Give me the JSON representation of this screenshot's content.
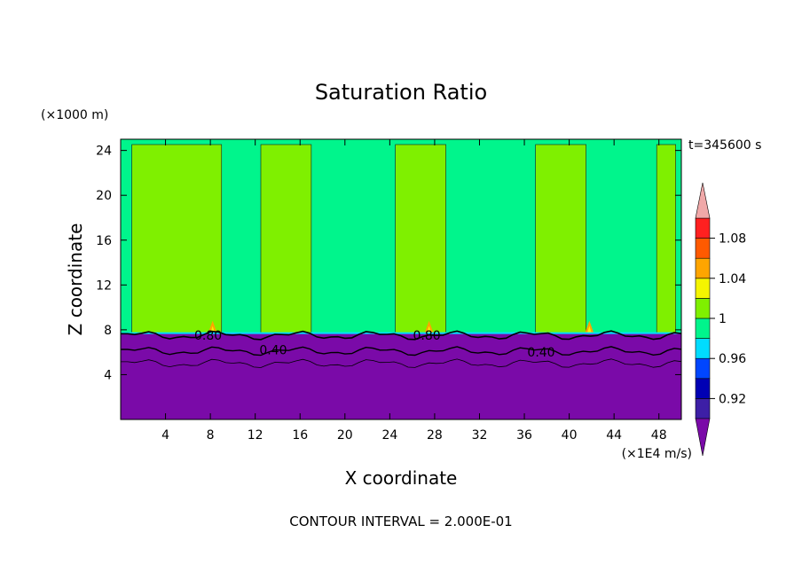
{
  "figure": {
    "title": "Saturation Ratio",
    "time_label": "t=345600 s",
    "footer": "CONTOUR INTERVAL = 2.000E-01"
  },
  "chart_data": {
    "type": "heatmap",
    "title": "Saturation Ratio",
    "xlabel": "X coordinate",
    "ylabel": "Z coordinate",
    "x_units": "(×1E4 m/s)",
    "y_units": "(×1000 m)",
    "xlim": [
      0,
      50
    ],
    "ylim": [
      0,
      25
    ],
    "x_ticks": [
      4,
      8,
      12,
      16,
      20,
      24,
      28,
      32,
      36,
      40,
      44,
      48
    ],
    "y_ticks": [
      4,
      8,
      12,
      16,
      20,
      24
    ],
    "colorbar": {
      "levels": [
        0.9,
        0.92,
        0.94,
        0.96,
        0.98,
        1.0,
        1.02,
        1.04,
        1.06,
        1.08,
        1.1
      ],
      "tick_labels": [
        "0.92",
        "0.96",
        "1",
        "1.04",
        "1.08"
      ],
      "tick_values": [
        0.92,
        0.96,
        1.0,
        1.04,
        1.08
      ],
      "colors": [
        "#3d1fa6",
        "#0000b4",
        "#0046ff",
        "#00dcff",
        "#00f58c",
        "#7ff000",
        "#f5f500",
        "#ffa500",
        "#ff5a00",
        "#ff2020"
      ],
      "under_color": "#7a0aa8",
      "over_color": "#f0a8a8"
    },
    "contour_labels": [
      {
        "x": 7.8,
        "z": 7.5,
        "value": "0.80"
      },
      {
        "x": 27.3,
        "z": 7.5,
        "value": "0.80"
      },
      {
        "x": 13.6,
        "z": 6.2,
        "value": "0.40"
      },
      {
        "x": 37.5,
        "z": 6.0,
        "value": "0.40"
      }
    ],
    "regions": {
      "dry_layer_top_z": 7.7,
      "moist_bands_x": [
        [
          1.0,
          9.0
        ],
        [
          12.5,
          17.0
        ],
        [
          24.5,
          29.0
        ],
        [
          37.0,
          41.5
        ],
        [
          47.8,
          49.5
        ]
      ],
      "supersat_x": [
        8.2,
        27.5,
        41.8
      ],
      "peak_values": {
        "min_below": 0.0,
        "max": 1.05
      }
    }
  }
}
